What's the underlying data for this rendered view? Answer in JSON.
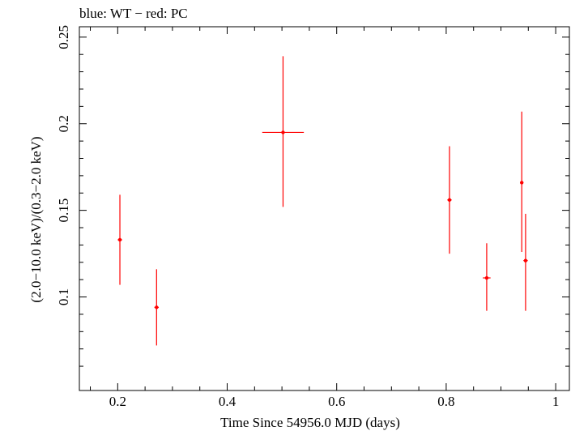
{
  "chart_data": {
    "type": "scatter",
    "title": "blue: WT − red: PC",
    "xlabel": "Time Since 54956.0 MJD (days)",
    "ylabel": "(2.0−10.0 keV)/(0.3−2.0 keV)",
    "xlim": [
      0.13,
      1.025
    ],
    "ylim": [
      0.046,
      0.256
    ],
    "x_ticks": [
      0.2,
      0.4,
      0.6,
      0.8,
      1
    ],
    "x_tick_labels": [
      "0.2",
      "0.4",
      "0.6",
      "0.8",
      "1"
    ],
    "y_ticks": [
      0.1,
      0.15,
      0.2,
      0.25
    ],
    "y_tick_labels": [
      "0.1",
      "0.15",
      "0.2",
      "0.25"
    ],
    "grid": false,
    "series": [
      {
        "color": "#ff0000",
        "points": [
          {
            "x": 0.204,
            "y": 0.133,
            "xerr": 0.004,
            "ylo": 0.107,
            "yhi": 0.159
          },
          {
            "x": 0.271,
            "y": 0.094,
            "xerr": 0.004,
            "ylo": 0.072,
            "yhi": 0.116
          },
          {
            "x": 0.502,
            "y": 0.195,
            "xerr": 0.038,
            "ylo": 0.152,
            "yhi": 0.239
          },
          {
            "x": 0.806,
            "y": 0.156,
            "xerr": 0.004,
            "ylo": 0.125,
            "yhi": 0.187
          },
          {
            "x": 0.874,
            "y": 0.111,
            "xerr": 0.007,
            "ylo": 0.092,
            "yhi": 0.131
          },
          {
            "x": 0.938,
            "y": 0.166,
            "xerr": 0.003,
            "ylo": 0.126,
            "yhi": 0.207
          },
          {
            "x": 0.945,
            "y": 0.121,
            "xerr": 0.004,
            "ylo": 0.092,
            "yhi": 0.148
          }
        ]
      }
    ]
  }
}
